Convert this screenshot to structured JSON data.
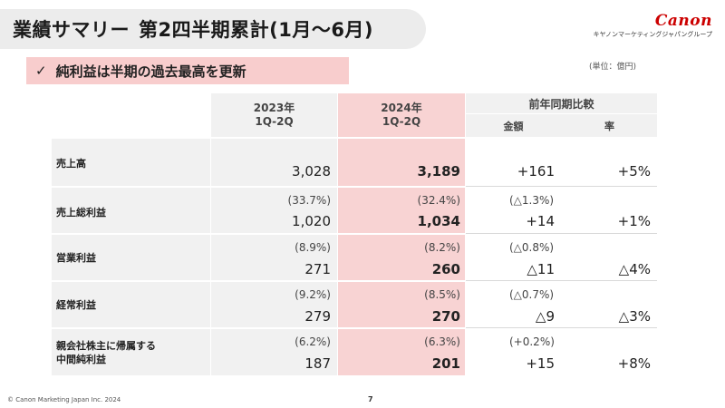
{
  "header": {
    "title": "業績サマリー",
    "subtitle": "第2四半期累計(1月～6月)",
    "brand": "Canon",
    "brand_sub": "キヤノンマーケティングジャパングループ"
  },
  "highlight": {
    "check": "✓",
    "text": "純利益は半期の過去最高を更新"
  },
  "unit": "(単位：億円)",
  "table": {
    "columns": {
      "y2023": "2023年\n1Q-2Q",
      "y2024": "2024年\n1Q-2Q",
      "yoy": "前年同期比較",
      "amount": "金額",
      "rate": "率"
    },
    "rows": [
      {
        "label": "売上高",
        "r2023": "",
        "v2023": "3,028",
        "r2024": "",
        "v2024": "3,189",
        "ryoy": "",
        "amount": "+161",
        "rate": "+5%"
      },
      {
        "label": "売上総利益",
        "r2023": "(33.7%)",
        "v2023": "1,020",
        "r2024": "(32.4%)",
        "v2024": "1,034",
        "ryoy": "(△1.3%)",
        "amount": "+14",
        "rate": "+1%"
      },
      {
        "label": "営業利益",
        "r2023": "(8.9%)",
        "v2023": "271",
        "r2024": "(8.2%)",
        "v2024": "260",
        "ryoy": "(△0.8%)",
        "amount": "△11",
        "rate": "△4%"
      },
      {
        "label": "経常利益",
        "r2023": "(9.2%)",
        "v2023": "279",
        "r2024": "(8.5%)",
        "v2024": "270",
        "ryoy": "(△0.7%)",
        "amount": "△9",
        "rate": "△3%"
      },
      {
        "label": "親会社株主に帰属する\n中間純利益",
        "r2023": "(6.2%)",
        "v2023": "187",
        "r2024": "(6.3%)",
        "v2024": "201",
        "ryoy": "(+0.2%)",
        "amount": "+15",
        "rate": "+8%"
      }
    ]
  },
  "footer": {
    "copyright": "© Canon Marketing Japan Inc. 2024",
    "page": "7"
  }
}
